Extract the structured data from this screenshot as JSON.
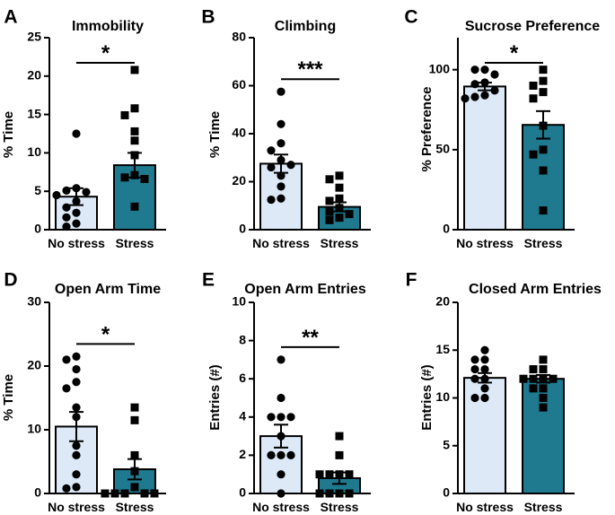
{
  "colors": {
    "no_stress_fill": "#dde9f7",
    "stress_fill": "#1f7a8f",
    "outline": "#000000"
  },
  "chart_data": [
    {
      "type": "bar",
      "panel": "A",
      "title": "Immobility",
      "xlabel": "",
      "ylabel": "% Time",
      "ylim": [
        0,
        25
      ],
      "yticks": [
        "0",
        "5",
        "10",
        "15",
        "20",
        "25"
      ],
      "categories": [
        "No stress",
        "Stress"
      ],
      "values": [
        4.3,
        8.4
      ],
      "errors": [
        1.1,
        1.6
      ],
      "points": [
        [
          12.5,
          5.4,
          5.1,
          4.9,
          4.5,
          3.7,
          2.9,
          2.2,
          1.6,
          0.8,
          0.4
        ],
        [
          20.8,
          15.8,
          14.9,
          12.8,
          11.6,
          9.7,
          7.1,
          6.8,
          6.6,
          3.0
        ]
      ],
      "significance": "*"
    },
    {
      "type": "bar",
      "panel": "B",
      "title": "Climbing",
      "xlabel": "",
      "ylabel": "% Time",
      "ylim": [
        0,
        80
      ],
      "yticks": [
        "0",
        "20",
        "40",
        "60",
        "80"
      ],
      "categories": [
        "No stress",
        "Stress"
      ],
      "values": [
        27.5,
        9.5
      ],
      "errors": [
        3.8,
        1.9
      ],
      "points": [
        [
          57.5,
          44.0,
          36.0,
          33.0,
          29.0,
          26.0,
          27.0,
          22.5,
          18.0,
          13.0,
          12.5
        ],
        [
          22.5,
          21.0,
          17.5,
          13.0,
          12.0,
          9.0,
          7.5,
          6.5,
          5.0,
          4.0
        ]
      ],
      "significance": "***"
    },
    {
      "type": "bar",
      "panel": "C",
      "title": "Sucrose Preference",
      "xlabel": "",
      "ylabel": "% Preference",
      "ylim": [
        0,
        120
      ],
      "yticks": [
        "0",
        "50",
        "100"
      ],
      "categories": [
        "No stress",
        "Stress"
      ],
      "values": [
        89.5,
        65.5
      ],
      "errors": [
        2.4,
        8.6
      ],
      "points": [
        [
          100.0,
          100.0,
          97.0,
          92.0,
          91.0,
          87.0,
          84.0,
          83.0,
          82.0
        ],
        [
          100.0,
          93.0,
          90.0,
          86.0,
          82.0,
          65.0,
          50.0,
          47.0,
          37.0,
          12.0
        ]
      ],
      "significance": "*"
    },
    {
      "type": "bar",
      "panel": "D",
      "title": "Open Arm Time",
      "xlabel": "",
      "ylabel": "% Time",
      "ylim": [
        0,
        30
      ],
      "yticks": [
        "0",
        "10",
        "20",
        "30"
      ],
      "categories": [
        "No stress",
        "Stress"
      ],
      "values": [
        10.5,
        3.8
      ],
      "errors": [
        2.3,
        1.6
      ],
      "points": [
        [
          21.5,
          21.0,
          19.5,
          17.5,
          16.5,
          13.5,
          12.0,
          7.5,
          6.0,
          3.0,
          1.0,
          0.8
        ],
        [
          13.5,
          11.5,
          6.0,
          3.5,
          1.0,
          0.0,
          0.0,
          0.0,
          0.0,
          0.0
        ]
      ],
      "significance": "*"
    },
    {
      "type": "bar",
      "panel": "E",
      "title": "Open Arm Entries",
      "xlabel": "",
      "ylabel": "Entries (#)",
      "ylim": [
        0,
        10
      ],
      "yticks": [
        "0",
        "2",
        "4",
        "6",
        "8",
        "10"
      ],
      "categories": [
        "No stress",
        "Stress"
      ],
      "values": [
        3.0,
        0.8
      ],
      "errors": [
        0.6,
        0.3
      ],
      "points": [
        [
          7.0,
          5.0,
          4.0,
          4.0,
          4.0,
          3.0,
          2.0,
          2.0,
          2.0,
          1.0,
          0.0
        ],
        [
          3.0,
          2.0,
          1.0,
          1.0,
          1.0,
          1.0,
          0.0,
          0.0,
          0.0,
          0.0
        ]
      ],
      "significance": "**"
    },
    {
      "type": "bar",
      "panel": "F",
      "title": "Closed Arm Entries",
      "xlabel": "",
      "ylabel": "Entries (#)",
      "ylim": [
        0,
        20
      ],
      "yticks": [
        "0",
        "5",
        "10",
        "15",
        "20"
      ],
      "categories": [
        "No stress",
        "Stress"
      ],
      "values": [
        12.1,
        12.0
      ],
      "errors": [
        0.5,
        0.4
      ],
      "points": [
        [
          15.0,
          14.0,
          14.0,
          13.0,
          13.0,
          12.0,
          12.0,
          11.0,
          10.0,
          10.0
        ],
        [
          14.0,
          13.0,
          13.0,
          12.0,
          12.0,
          12.0,
          12.0,
          11.0,
          11.0,
          10.0,
          9.0
        ]
      ],
      "significance": ""
    }
  ]
}
